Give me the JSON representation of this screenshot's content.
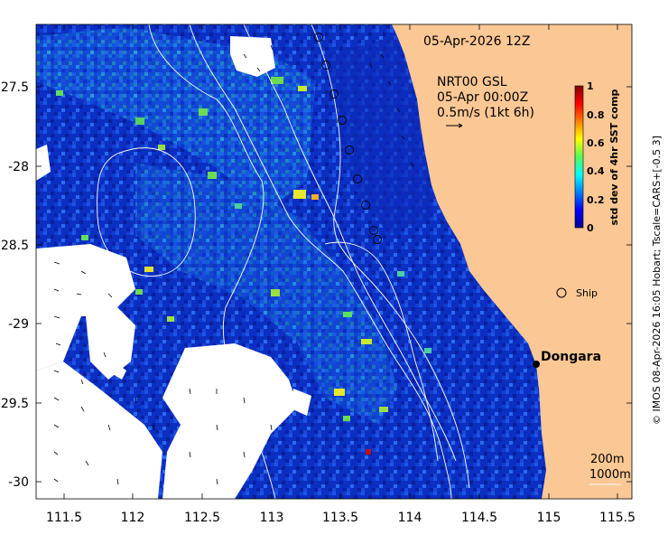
{
  "map": {
    "timestamp": "05-Apr-2026 12Z",
    "product": "NRT00 GSL",
    "product_time": "05-Apr 00:00Z",
    "vector_scale": "0.5m/s (1kt 6h)",
    "place_label": "Dongara",
    "ship_label": "Ship",
    "contour_labels": [
      "200m",
      "1000m"
    ],
    "credit": "© IMOS 08-Apr-2026 16:05 Hobart; Tscale=CARS+[-0.5 3]",
    "colors": {
      "land": "#fbc794",
      "contour": "#ffffff",
      "background": "#ffffff"
    }
  },
  "colorbar": {
    "title": "std dev of 4hr SST comp",
    "ticks": [
      "0",
      "0.2",
      "0.4",
      "0.6",
      "0.8",
      "1"
    ],
    "range": [
      0,
      1
    ],
    "colormap": "jet"
  },
  "axes": {
    "x_ticks": [
      "111.5",
      "112",
      "112.5",
      "113",
      "113.5",
      "114",
      "114.5",
      "115",
      "115.5"
    ],
    "y_ticks": [
      "-27.5",
      "-28",
      "-28.5",
      "-29",
      "-29.5",
      "-30"
    ],
    "x_range": [
      111.3,
      115.65
    ],
    "y_range": [
      -30.1,
      -27.05
    ]
  }
}
